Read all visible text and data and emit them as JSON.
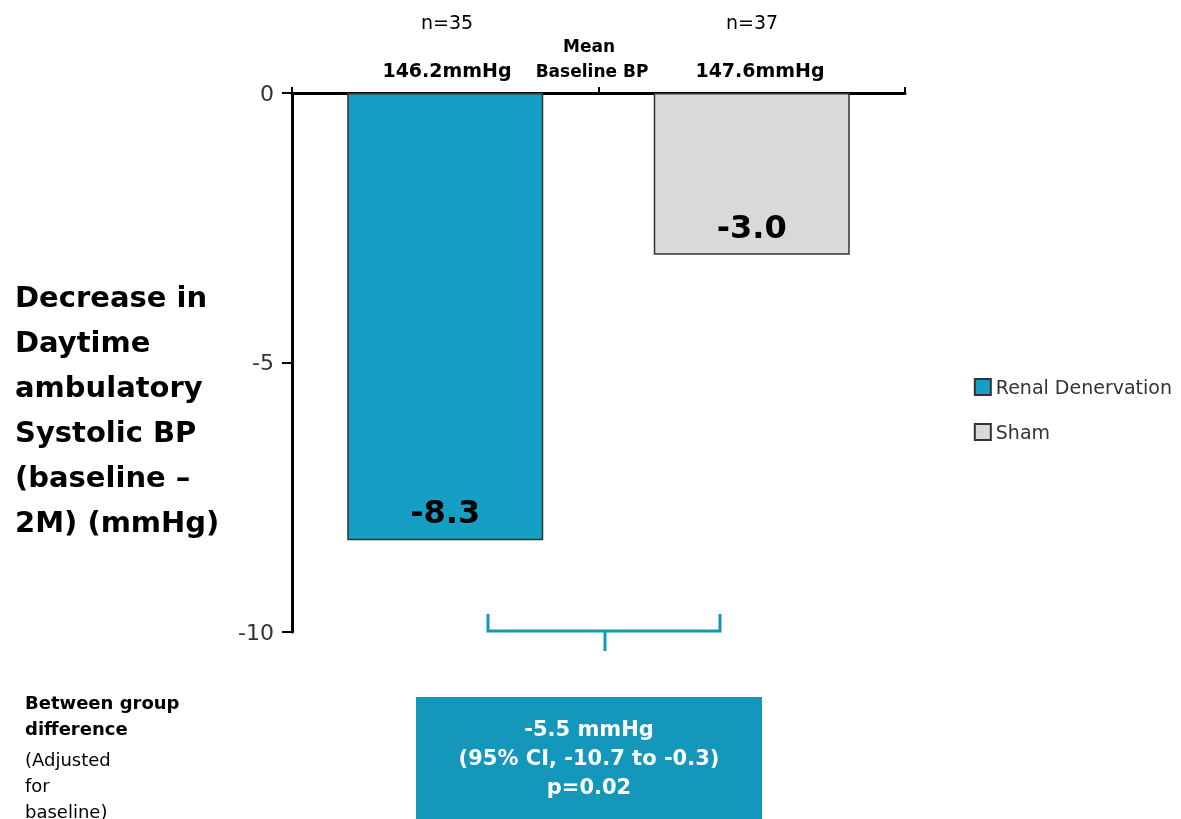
{
  "chart_data": {
    "type": "bar",
    "ylabel": "Decrease in Daytime ambulatory Systolic BP (baseline – 2M) (mmHg)",
    "categories": [
      null,
      null
    ],
    "series": [
      {
        "name": "Renal Denervation",
        "color": "#169fc5",
        "values": [
          -8.3,
          null
        ],
        "value_labels": [
          "-8.3",
          null
        ]
      },
      {
        "name": "Sham",
        "color": "#d9d9d9",
        "values": [
          null,
          -3.0
        ],
        "value_labels": [
          null,
          "-3.0"
        ]
      }
    ],
    "ylim": [
      -10,
      0
    ],
    "yticks": [
      0,
      -5,
      -10
    ],
    "grid": false,
    "legend": "right",
    "annotations": [
      "n=35",
      "146.2mmHg",
      "Mean Baseline BP",
      "n=37",
      "147.6mmHg",
      "Between group difference",
      "(Adjusted for baseline)",
      "-5.5 mmHg\n(95% CI, -10.7 to -0.3)\np=0.02"
    ]
  }
}
